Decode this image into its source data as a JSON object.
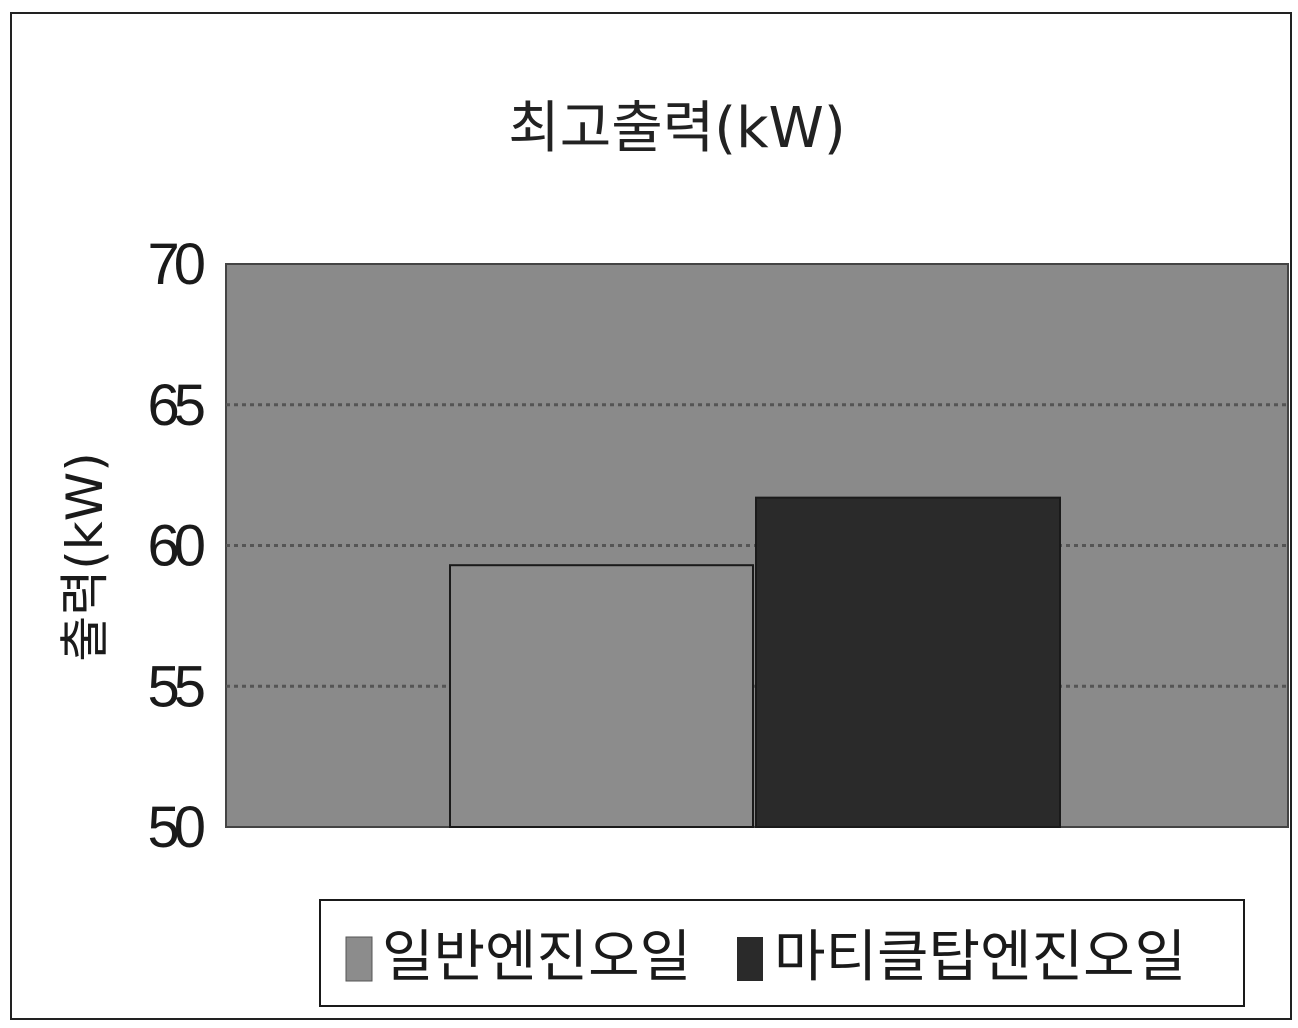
{
  "chart_data": {
    "type": "bar",
    "title": "최고출력(kW)",
    "ylabel": "출력(kW)",
    "xlabel": "",
    "ylim": [
      50,
      70
    ],
    "yticks": [
      50,
      55,
      60,
      65,
      70
    ],
    "grid": true,
    "legend_position": "bottom",
    "series": [
      {
        "name": "일반엔진오일",
        "value": 59.3,
        "color": "#8c8c8c"
      },
      {
        "name": "마티클탑엔진오일",
        "value": 61.7,
        "color": "#2a2a2a"
      }
    ],
    "colors": {
      "plot_background": "#8a8a8a",
      "gridline": "#555555"
    }
  }
}
